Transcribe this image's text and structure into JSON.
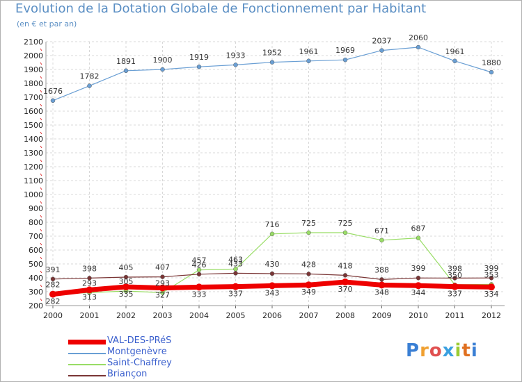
{
  "header": {
    "title": "Evolution de la Dotation Globale de Fonctionnement par Habitant",
    "subtitle": "(en € et par an)"
  },
  "logo": {
    "text": "Proxiti"
  },
  "chart_data": {
    "type": "line",
    "x": [
      "2000",
      "2001",
      "2002",
      "2003",
      "2004",
      "2005",
      "2006",
      "2007",
      "2008",
      "2009",
      "2010",
      "2011",
      "2012"
    ],
    "ylim": [
      200,
      2100
    ],
    "yticks": [
      200,
      300,
      400,
      500,
      600,
      700,
      800,
      900,
      1000,
      1100,
      1200,
      1300,
      1400,
      1500,
      1600,
      1700,
      1800,
      1900,
      2000,
      2100
    ],
    "grid": true,
    "legend_position": "bottom-left",
    "series": [
      {
        "name": "VAL-DES-PRéS",
        "color": "#ee0000",
        "values": [
          282,
          313,
          335,
          327,
          333,
          337,
          343,
          349,
          370,
          348,
          344,
          337,
          334
        ]
      },
      {
        "name": "Montgenèvre",
        "color": "#6a9fd4",
        "values": [
          1676,
          1782,
          1891,
          1900,
          1919,
          1933,
          1952,
          1961,
          1969,
          2037,
          2060,
          1961,
          1880
        ]
      },
      {
        "name": "Saint-Chaffrey",
        "color": "#99dd66",
        "values": [
          282,
          293,
          305,
          293,
          457,
          463,
          716,
          725,
          725,
          671,
          687,
          350,
          353
        ]
      },
      {
        "name": "Briançon",
        "color": "#7a3535",
        "values": [
          391,
          398,
          405,
          407,
          426,
          433,
          430,
          428,
          418,
          388,
          399,
          398,
          399
        ]
      }
    ]
  }
}
